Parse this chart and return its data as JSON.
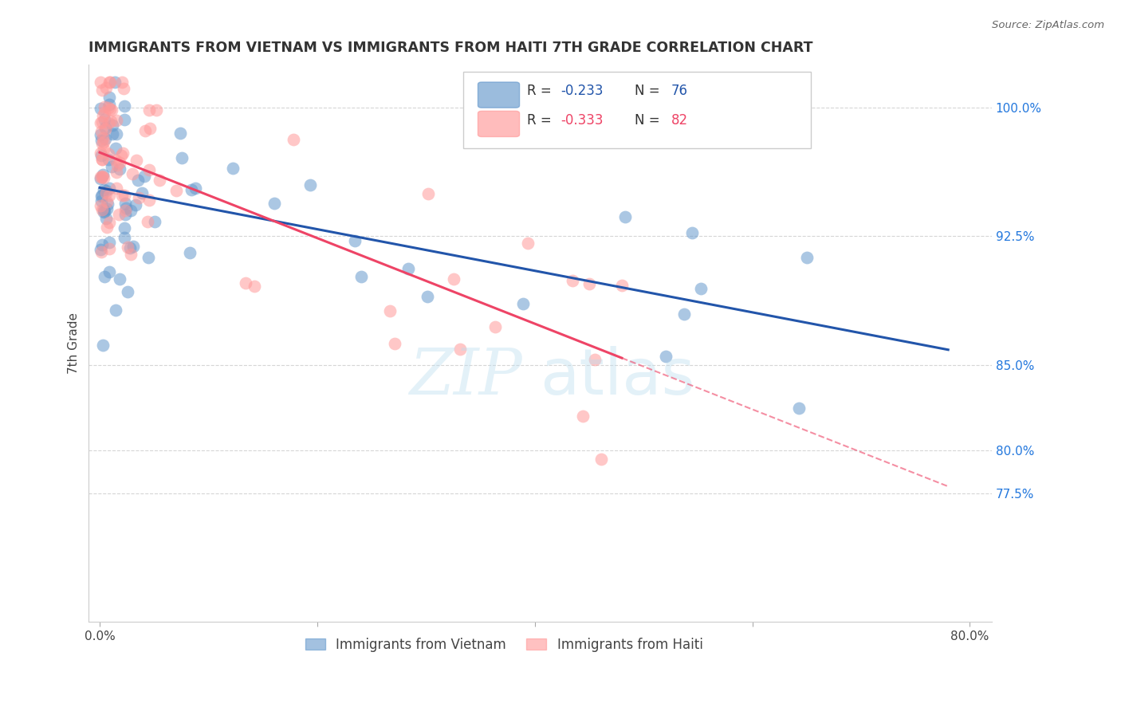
{
  "title": "IMMIGRANTS FROM VIETNAM VS IMMIGRANTS FROM HAITI 7TH GRADE CORRELATION CHART",
  "source": "Source: ZipAtlas.com",
  "ylabel": "7th Grade",
  "ytick_positions": [
    77.5,
    80.0,
    85.0,
    92.5,
    100.0
  ],
  "ytick_labels": [
    "77.5%",
    "80.0%",
    "85.0%",
    "92.5%",
    "100.0%"
  ],
  "ymin": 70.0,
  "ymax": 102.5,
  "xmin": -1.0,
  "xmax": 82.0,
  "xtick_positions": [
    0,
    20,
    40,
    60,
    80
  ],
  "xtick_labels": [
    "0.0%",
    "",
    "",
    "",
    "80.0%"
  ],
  "legend_r_viet": "-0.233",
  "legend_n_viet": "76",
  "legend_r_haiti": "-0.333",
  "legend_n_haiti": "82",
  "vietnam_color": "#6699CC",
  "haiti_color": "#FF9999",
  "line_vietnam_color": "#2255AA",
  "line_haiti_color": "#EE4466",
  "watermark_zip": "ZIP",
  "watermark_atlas": "atlas",
  "bottom_label_viet": "Immigrants from Vietnam",
  "bottom_label_haiti": "Immigrants from Haiti"
}
